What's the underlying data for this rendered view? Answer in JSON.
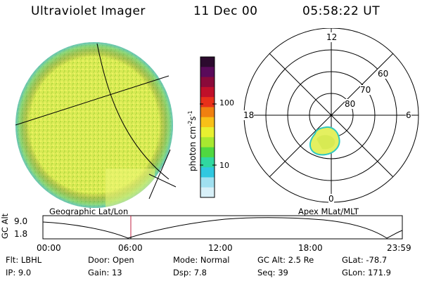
{
  "header": {
    "instrument": "Ultraviolet Imager",
    "date": "11 Dec 00",
    "time": "05:58:22 UT"
  },
  "left_panel": {
    "caption": "Geographic Lat/Lon"
  },
  "colorbar": {
    "label_main": "photon cm",
    "label_exp1": "-2",
    "label_mid": "s",
    "label_exp2": "-1",
    "tick_100": "100",
    "tick_10": "10",
    "colors": [
      "#2c0a2e",
      "#5a0a5a",
      "#8a0a3a",
      "#c0102a",
      "#e8301a",
      "#f08010",
      "#f8c018",
      "#e8f030",
      "#a8e830",
      "#50d840",
      "#30d8a0",
      "#30c8e0",
      "#a0e0f0",
      "#d8f0f8"
    ]
  },
  "polar_panel": {
    "caption": "Apex MLat/MLT",
    "mlt_labels": {
      "top": "12",
      "left": "18",
      "right": "6",
      "bottom": "0"
    },
    "lat_labels": [
      "60",
      "70",
      "80"
    ]
  },
  "altitude_plot": {
    "ylabel": "GC Alt",
    "y_ticks": [
      "9.0",
      "1.8"
    ],
    "x_ticks": [
      "00:00",
      "06:00",
      "12:00",
      "18:00",
      "23:59"
    ],
    "current_time_marker": "05:58",
    "marker_color": "#c02040"
  },
  "info": {
    "row1": [
      {
        "label": "Flt:",
        "value": "LBHL"
      },
      {
        "label": "Door:",
        "value": "Open"
      },
      {
        "label": "Mode:",
        "value": "Normal"
      },
      {
        "label": "GC Alt:",
        "value": "2.5 Re"
      },
      {
        "label": "GLat:",
        "value": "-78.7"
      }
    ],
    "row2": [
      {
        "label": "IP:",
        "value": "9.0"
      },
      {
        "label": "Gain:",
        "value": "13"
      },
      {
        "label": "Dsp:",
        "value": "7.8"
      },
      {
        "label": "Seq:",
        "value": "39"
      },
      {
        "label": "GLon:",
        "value": "171.9"
      }
    ]
  }
}
